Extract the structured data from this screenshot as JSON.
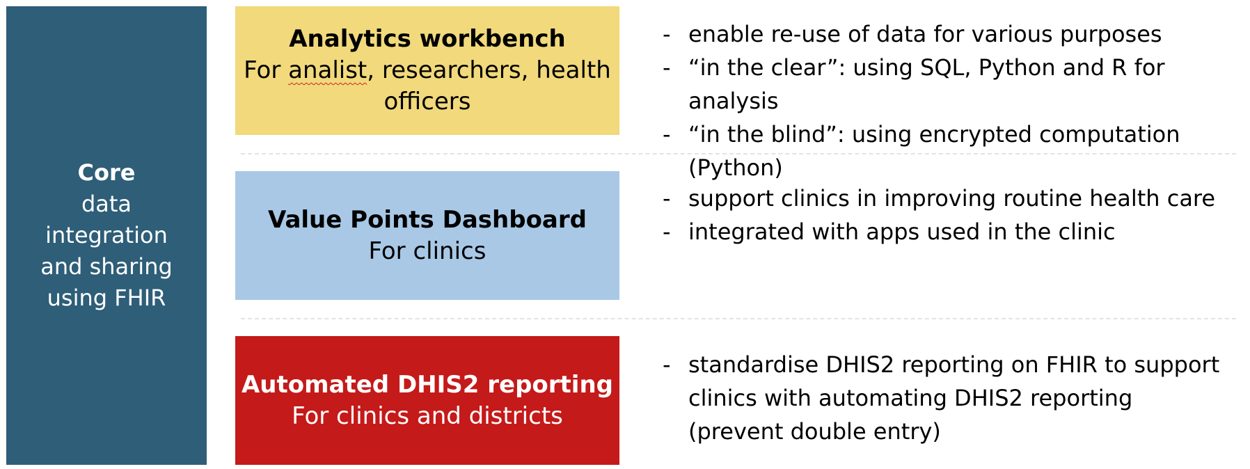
{
  "core": {
    "title": "Core",
    "lines": [
      "data",
      "integration",
      "and sharing",
      "using FHIR"
    ]
  },
  "boxes": [
    {
      "title": "Analytics workbench",
      "subtitle_pre": "For ",
      "subtitle_flagged": "analist",
      "subtitle_post": ", researchers, health officers",
      "color": "#f1d97c"
    },
    {
      "title": "Value Points Dashboard",
      "subtitle": "For clinics",
      "color": "#a8c8e6"
    },
    {
      "title": "Automated DHIS2 reporting",
      "subtitle": "For clinics and districts",
      "color": "#c41a19"
    }
  ],
  "bullet_marker": "-",
  "bullets": [
    [
      "enable re-use of data for various purposes",
      "“in the clear”: using SQL, Python and R for analysis",
      "“in the blind”: using encrypted computation (Python)"
    ],
    [
      "support clinics in improving routine health care",
      "integrated with apps used in the clinic"
    ],
    [
      "standardise DHIS2 reporting on FHIR to support clinics with automating DHIS2 reporting (prevent double entry)"
    ]
  ],
  "colors": {
    "core_background": "#2e5e78",
    "divider": "#e3e3e3"
  }
}
